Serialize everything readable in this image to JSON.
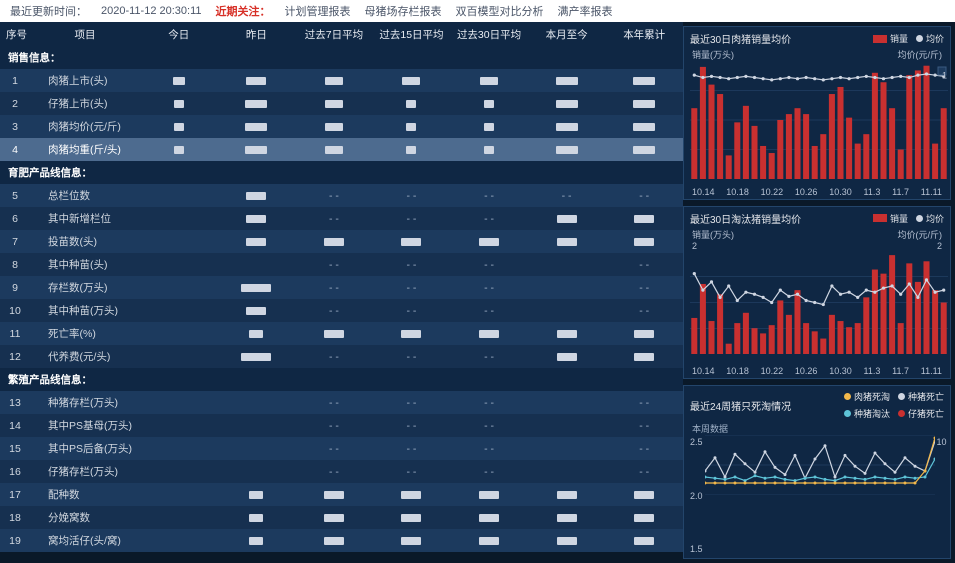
{
  "topbar": {
    "update_label": "最近更新时间：",
    "timestamp": "2020-11-12 20:30:11",
    "alert": "近期关注：",
    "links": [
      "计划管理报表",
      "母猪场存栏报表",
      "双百模型对比分析",
      "满产率报表"
    ]
  },
  "table": {
    "headers": [
      "序号",
      "项目",
      "今日",
      "昨日",
      "过去7日平均",
      "过去15日平均",
      "过去30日平均",
      "本月至今",
      "本年累计"
    ],
    "sections": [
      {
        "title": "销售信息：",
        "rows": [
          {
            "n": "1",
            "item": "肉猪上市(头)",
            "cells": [
              "r12",
              "r20",
              "r18",
              "r18",
              "r18",
              "r22",
              "r22"
            ]
          },
          {
            "n": "2",
            "item": "仔猪上市(头)",
            "cells": [
              "r10",
              "r22",
              "r18",
              "r10",
              "r10",
              "r22",
              "r22"
            ]
          },
          {
            "n": "3",
            "item": "肉猪均价(元/斤)",
            "cells": [
              "r10",
              "r22",
              "r18",
              "r10",
              "r10",
              "r22",
              "r22"
            ]
          },
          {
            "n": "4",
            "item": "肉猪均重(斤/头)",
            "cells": [
              "r10",
              "r22",
              "r18",
              "r10",
              "r10",
              "r22",
              "r22"
            ],
            "hl": true
          }
        ]
      },
      {
        "title": "育肥产品线信息：",
        "rows": [
          {
            "n": "5",
            "item": "总栏位数",
            "cells": [
              "",
              "r20",
              "- -",
              "- -",
              "- -",
              "- -",
              "- -"
            ]
          },
          {
            "n": "6",
            "item": "其中新增栏位",
            "cells": [
              "",
              "r20",
              "- -",
              "- -",
              "- -",
              "r20",
              "r20"
            ]
          },
          {
            "n": "7",
            "item": "投苗数(头)",
            "cells": [
              "",
              "r20",
              "r20",
              "r20",
              "r20",
              "r20",
              "r20"
            ]
          },
          {
            "n": "8",
            "item": "其中种苗(头)",
            "cells": [
              "",
              "",
              "- -",
              "- -",
              "- -",
              "",
              "- -"
            ]
          },
          {
            "n": "9",
            "item": "存栏数(万头)",
            "cells": [
              "",
              "r30",
              "- -",
              "- -",
              "- -",
              "",
              "- -"
            ]
          },
          {
            "n": "10",
            "item": "其中种苗(万头)",
            "cells": [
              "",
              "r20",
              "- -",
              "- -",
              "- -",
              "",
              "- -"
            ]
          },
          {
            "n": "11",
            "item": "死亡率(%)",
            "cells": [
              "",
              "r14",
              "r20",
              "r20",
              "r20",
              "r20",
              "r20"
            ]
          },
          {
            "n": "12",
            "item": "代养费(元/头)",
            "cells": [
              "",
              "r30",
              "- -",
              "- -",
              "- -",
              "r20",
              "r20"
            ]
          }
        ]
      },
      {
        "title": "繁殖产品线信息：",
        "rows": [
          {
            "n": "13",
            "item": "种猪存栏(万头)",
            "cells": [
              "",
              "",
              "- -",
              "- -",
              "- -",
              "",
              "- -"
            ]
          },
          {
            "n": "14",
            "item": "其中PS基母(万头)",
            "cells": [
              "",
              "",
              "- -",
              "- -",
              "- -",
              "",
              "- -"
            ]
          },
          {
            "n": "15",
            "item": "其中PS后备(万头)",
            "cells": [
              "",
              "",
              "- -",
              "- -",
              "- -",
              "",
              "- -"
            ]
          },
          {
            "n": "16",
            "item": "仔猪存栏(万头)",
            "cells": [
              "",
              "",
              "- -",
              "- -",
              "- -",
              "",
              "- -"
            ]
          },
          {
            "n": "17",
            "item": "配种数",
            "cells": [
              "",
              "r14",
              "r20",
              "r20",
              "r20",
              "r20",
              "r20"
            ]
          },
          {
            "n": "18",
            "item": "分娩窝数",
            "cells": [
              "",
              "r14",
              "r20",
              "r20",
              "r20",
              "r20",
              "r20"
            ]
          },
          {
            "n": "19",
            "item": "窝均活仔(头/窝)",
            "cells": [
              "",
              "r14",
              "r20",
              "r20",
              "r20",
              "r20",
              "r20"
            ]
          }
        ]
      }
    ]
  },
  "charts": {
    "c1": {
      "title": "最近30日肉猪销量均价",
      "legend": [
        {
          "label": "销量",
          "type": "sq",
          "color": "#c93030"
        },
        {
          "label": "均价",
          "type": "dot",
          "color": "#cfd6e2"
        }
      ],
      "left_axis_label": "销量(万头)",
      "right_axis_label": "均价(元/斤)",
      "x_ticks": [
        "10.14",
        "10.18",
        "10.22",
        "10.26",
        "10.30",
        "11.3",
        "11.7",
        "11.11"
      ],
      "bars": [
        0.6,
        0.95,
        0.8,
        0.72,
        0.2,
        0.48,
        0.62,
        0.45,
        0.28,
        0.22,
        0.5,
        0.55,
        0.6,
        0.55,
        0.28,
        0.38,
        0.72,
        0.78,
        0.52,
        0.3,
        0.38,
        0.9,
        0.82,
        0.6,
        0.25,
        0.88,
        0.92,
        0.96,
        0.3,
        0.6
      ],
      "line": [
        0.88,
        0.86,
        0.87,
        0.86,
        0.85,
        0.86,
        0.87,
        0.86,
        0.85,
        0.84,
        0.85,
        0.86,
        0.85,
        0.86,
        0.85,
        0.84,
        0.85,
        0.86,
        0.85,
        0.86,
        0.87,
        0.86,
        0.85,
        0.86,
        0.87,
        0.86,
        0.88,
        0.89,
        0.88,
        0.87
      ],
      "right_marks": [
        1
      ],
      "bar_color": "#c93030",
      "line_color": "#cfd6e2",
      "grid_color": "#2a4b72"
    },
    "c2": {
      "title": "最近30日淘汰猪销量均价",
      "legend": [
        {
          "label": "销量",
          "type": "sq",
          "color": "#c93030"
        },
        {
          "label": "均价",
          "type": "dot",
          "color": "#cfd6e2"
        }
      ],
      "left_axis_label": "销量(万头)",
      "right_axis_label": "均价(元/斤)",
      "left_tick": "2",
      "right_tick": "2",
      "x_ticks": [
        "10.14",
        "10.18",
        "10.22",
        "10.26",
        "10.30",
        "11.3",
        "11.7",
        "11.11"
      ],
      "bars": [
        0.35,
        0.68,
        0.32,
        0.58,
        0.1,
        0.3,
        0.4,
        0.25,
        0.2,
        0.28,
        0.52,
        0.38,
        0.62,
        0.3,
        0.22,
        0.15,
        0.38,
        0.32,
        0.26,
        0.3,
        0.55,
        0.82,
        0.78,
        0.96,
        0.3,
        0.88,
        0.7,
        0.9,
        0.62,
        0.5
      ],
      "line": [
        0.78,
        0.62,
        0.7,
        0.55,
        0.66,
        0.52,
        0.6,
        0.58,
        0.55,
        0.5,
        0.62,
        0.56,
        0.58,
        0.52,
        0.5,
        0.48,
        0.66,
        0.58,
        0.6,
        0.55,
        0.62,
        0.6,
        0.64,
        0.66,
        0.58,
        0.68,
        0.55,
        0.72,
        0.6,
        0.62
      ],
      "bar_color": "#c93030",
      "line_color": "#cfd6e2",
      "grid_color": "#2a4b72"
    },
    "c3": {
      "title": "最近24周猪只死淘情况",
      "legend": [
        {
          "label": "肉猪死淘",
          "type": "dot",
          "color": "#f2b84b"
        },
        {
          "label": "种猪死亡",
          "type": "dot",
          "color": "#cfd6e2"
        },
        {
          "label": "种猪淘汰",
          "type": "dot",
          "color": "#5ec4d8"
        },
        {
          "label": "仔猪死亡",
          "type": "dot",
          "color": "#c93030"
        }
      ],
      "sub_label": "本周数据",
      "left_ticks": [
        "2.5",
        "2.0",
        "1.5"
      ],
      "right_tick": "10",
      "lines": {
        "a": {
          "color": "#cfd6e2",
          "vals": [
            0.4,
            0.62,
            0.3,
            0.68,
            0.52,
            0.38,
            0.72,
            0.46,
            0.34,
            0.66,
            0.28,
            0.6,
            0.82,
            0.3,
            0.66,
            0.48,
            0.36,
            0.7,
            0.52,
            0.38,
            0.62,
            0.48,
            0.4,
            0.9
          ]
        },
        "b": {
          "color": "#5ec4d8",
          "vals": [
            0.3,
            0.28,
            0.26,
            0.3,
            0.24,
            0.32,
            0.28,
            0.3,
            0.26,
            0.24,
            0.28,
            0.3,
            0.26,
            0.24,
            0.3,
            0.28,
            0.26,
            0.3,
            0.28,
            0.26,
            0.3,
            0.28,
            0.3,
            0.6
          ]
        },
        "c": {
          "color": "#f2b84b",
          "vals": [
            0.2,
            0.2,
            0.2,
            0.2,
            0.2,
            0.2,
            0.2,
            0.2,
            0.2,
            0.2,
            0.2,
            0.2,
            0.2,
            0.2,
            0.2,
            0.2,
            0.2,
            0.2,
            0.2,
            0.2,
            0.2,
            0.2,
            0.4,
            0.95
          ]
        }
      },
      "grid_color": "#2a4b72"
    }
  },
  "style": {
    "bg": "#0f2744",
    "row_even": "#1c3a5e",
    "row_odd": "#163050",
    "highlight": "#4d6b8f"
  }
}
